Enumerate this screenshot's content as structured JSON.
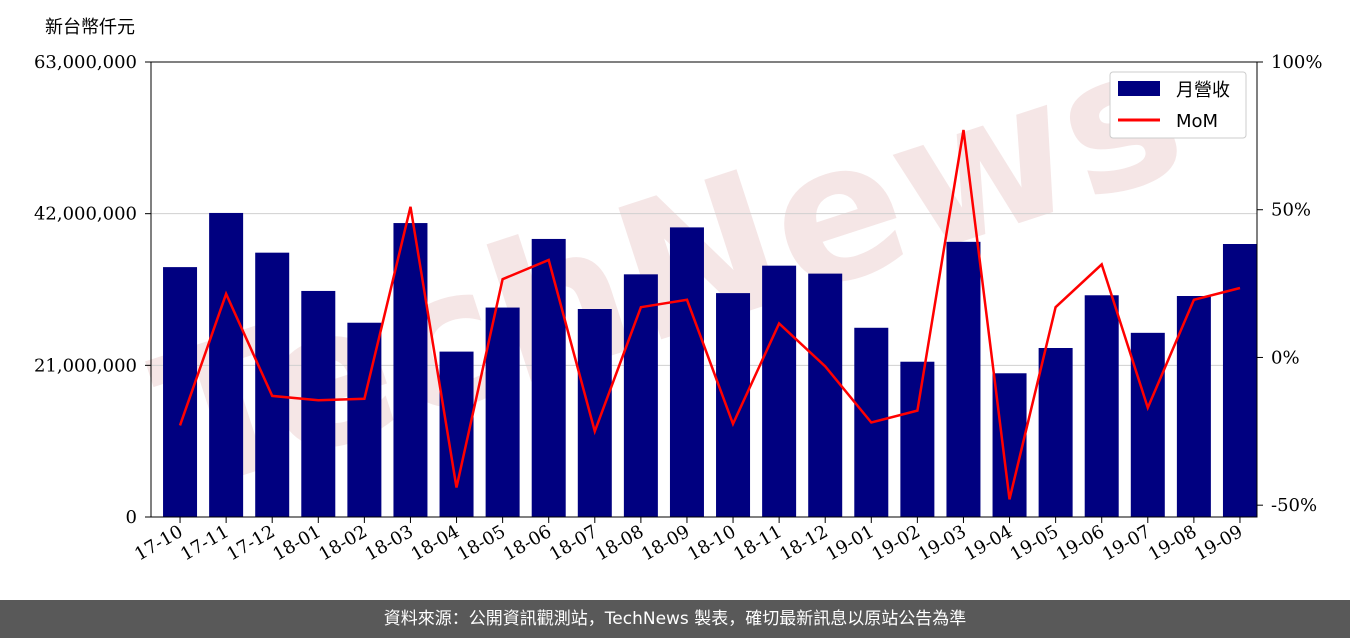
{
  "unit_label": "新台幣仟元",
  "watermark": "TechNews",
  "footer_text": "資料來源：公開資訊觀測站，TechNews 製表，確切最新訊息以原站公告為準",
  "colors": {
    "bar": "#000080",
    "line": "#ff0000",
    "footer_bg": "#595959",
    "watermark": "#e9c9c9"
  },
  "chart_data": {
    "type": "bar",
    "categories": [
      "17-10",
      "17-11",
      "17-12",
      "18-01",
      "18-02",
      "18-03",
      "18-04",
      "18-05",
      "18-06",
      "18-07",
      "18-08",
      "18-09",
      "18-10",
      "18-11",
      "18-12",
      "19-01",
      "19-02",
      "19-03",
      "19-04",
      "19-05",
      "19-06",
      "19-07",
      "19-08",
      "19-09"
    ],
    "series": [
      {
        "name": "月營收",
        "type": "bar",
        "axis": "left",
        "values": [
          34600000,
          42100000,
          36600000,
          31300000,
          26900000,
          40700000,
          22900000,
          29000000,
          38500000,
          28800000,
          33600000,
          40100000,
          31000000,
          34800000,
          33700000,
          26200000,
          21500000,
          38100000,
          19900000,
          23400000,
          30700000,
          25500000,
          30600000,
          37800000
        ]
      },
      {
        "name": "MoM",
        "type": "line",
        "axis": "right",
        "values": [
          -23,
          21.5,
          -13,
          -14.5,
          -14,
          51,
          -44,
          26.5,
          33,
          -25,
          17,
          19.5,
          -22.5,
          11.5,
          -3,
          -22,
          -18,
          77,
          -48,
          17,
          31.5,
          -17,
          19.5,
          23.5
        ]
      }
    ],
    "left_axis": {
      "ylim": [
        0,
        63000000
      ],
      "ticks": [
        "0",
        "21,000,000",
        "42,000,000",
        "63,000,000"
      ],
      "tick_values": [
        0,
        21000000,
        42000000,
        63000000
      ]
    },
    "right_axis": {
      "ylim": [
        -54,
        100
      ],
      "ticks": [
        "-50%",
        "0%",
        "50%",
        "100%"
      ],
      "tick_values": [
        -50,
        0,
        50,
        100
      ]
    },
    "grid": "horizontal",
    "legend": {
      "position": "top-right",
      "entries": [
        "月營收",
        "MoM"
      ]
    }
  }
}
